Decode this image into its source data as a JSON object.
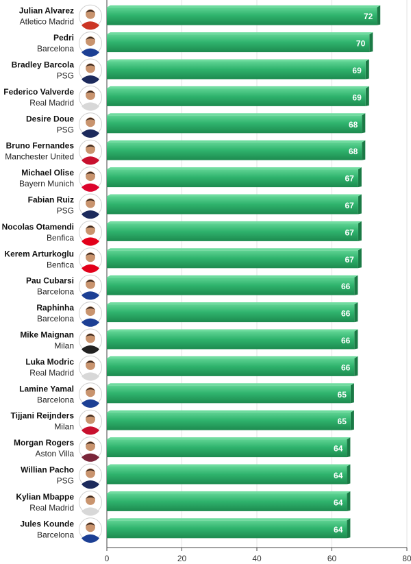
{
  "chart_data": {
    "type": "bar",
    "orientation": "horizontal",
    "xlim": [
      0,
      80
    ],
    "x_ticks": [
      0,
      20,
      40,
      60,
      80
    ],
    "grid": true,
    "bar_color": "#2db36c",
    "bar_dark": "#1a7a45",
    "value_label_color": "#ffffff",
    "series": [
      {
        "values": [
          72,
          70,
          69,
          69,
          68,
          68,
          67,
          67,
          67,
          67,
          66,
          66,
          66,
          66,
          65,
          65,
          64,
          64,
          64,
          64
        ]
      }
    ],
    "categories": [
      {
        "name": "Julian Alvarez",
        "club": "Atletico Madrid",
        "kit": "#cb3524"
      },
      {
        "name": "Pedri",
        "club": "Barcelona",
        "kit": "#1c3f94"
      },
      {
        "name": "Bradley Barcola",
        "club": "PSG",
        "kit": "#1c2a5c"
      },
      {
        "name": "Federico Valverde",
        "club": "Real Madrid",
        "kit": "#d8d8d8"
      },
      {
        "name": "Desire Doue",
        "club": "PSG",
        "kit": "#1c2a5c"
      },
      {
        "name": "Bruno Fernandes",
        "club": "Manchester United",
        "kit": "#c8102e"
      },
      {
        "name": "Michael Olise",
        "club": "Bayern Munich",
        "kit": "#dc052d"
      },
      {
        "name": "Fabian Ruiz",
        "club": "PSG",
        "kit": "#1c2a5c"
      },
      {
        "name": "Nocolas Otamendi",
        "club": "Benfica",
        "kit": "#e2001a"
      },
      {
        "name": "Kerem Arturkoglu",
        "club": "Benfica",
        "kit": "#e2001a"
      },
      {
        "name": "Pau Cubarsi",
        "club": "Barcelona",
        "kit": "#1c3f94"
      },
      {
        "name": "Raphinha",
        "club": "Barcelona",
        "kit": "#1c3f94"
      },
      {
        "name": "Mike Maignan",
        "club": "Milan",
        "kit": "#222222"
      },
      {
        "name": "Luka Modric",
        "club": "Real Madrid",
        "kit": "#d8d8d8"
      },
      {
        "name": "Lamine Yamal",
        "club": "Barcelona",
        "kit": "#1c3f94"
      },
      {
        "name": "Tijjani Reijnders",
        "club": "Milan",
        "kit": "#c8102e"
      },
      {
        "name": "Morgan Rogers",
        "club": "Aston Villa",
        "kit": "#7a263a"
      },
      {
        "name": "Willian Pacho",
        "club": "PSG",
        "kit": "#1c2a5c"
      },
      {
        "name": "Kylian Mbappe",
        "club": "Real Madrid",
        "kit": "#d8d8d8"
      },
      {
        "name": "Jules Kounde",
        "club": "Barcelona",
        "kit": "#1c3f94"
      }
    ]
  }
}
